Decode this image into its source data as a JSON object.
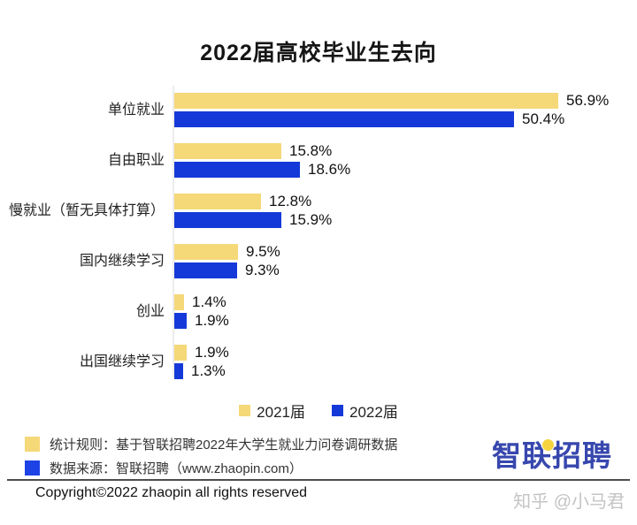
{
  "title": "2022届高校毕业生去向",
  "chart_data": {
    "type": "bar",
    "orientation": "horizontal",
    "title": "2022届高校毕业生去向",
    "categories": [
      "单位就业",
      "自由职业",
      "慢就业（暂无具体打算）",
      "国内继续学习",
      "创业",
      "出国继续学习"
    ],
    "series": [
      {
        "name": "2021届",
        "color": "#f5d878",
        "values": [
          56.9,
          15.8,
          12.8,
          9.5,
          1.4,
          1.9
        ]
      },
      {
        "name": "2022届",
        "color": "#1539d8",
        "values": [
          50.4,
          18.6,
          15.9,
          9.3,
          1.9,
          1.3
        ]
      }
    ],
    "value_suffix": "%",
    "xlim": [
      0,
      60
    ],
    "grid": false,
    "legend_position": "bottom"
  },
  "legend": [
    {
      "label": "2021届",
      "color": "#f5d878"
    },
    {
      "label": "2022届",
      "color": "#1539d8"
    }
  ],
  "footnotes": [
    {
      "swatch_color": "#f5d878",
      "text": "统计规则：基于智联招聘2022年大学生就业力问卷调研数据"
    },
    {
      "swatch_color": "#1d43e6",
      "text": "数据来源：智联招聘（www.zhaopin.com）"
    }
  ],
  "footer": {
    "copyright": "Copyright©2022 zhaopin all rights reserved"
  },
  "logo": {
    "text": "智联招聘"
  },
  "watermark": {
    "text": "知乎 @小马君"
  },
  "colors": {
    "bar_2021": "#f5d878",
    "bar_2022": "#1539d8",
    "axis_line": "#ececec",
    "divider": "#4d4d4d",
    "logo_blue": "#3747ae",
    "logo_dot_yellow": "#f5d33f",
    "watermark_gray": "#c4c4c4",
    "text_dark": "#151515"
  }
}
